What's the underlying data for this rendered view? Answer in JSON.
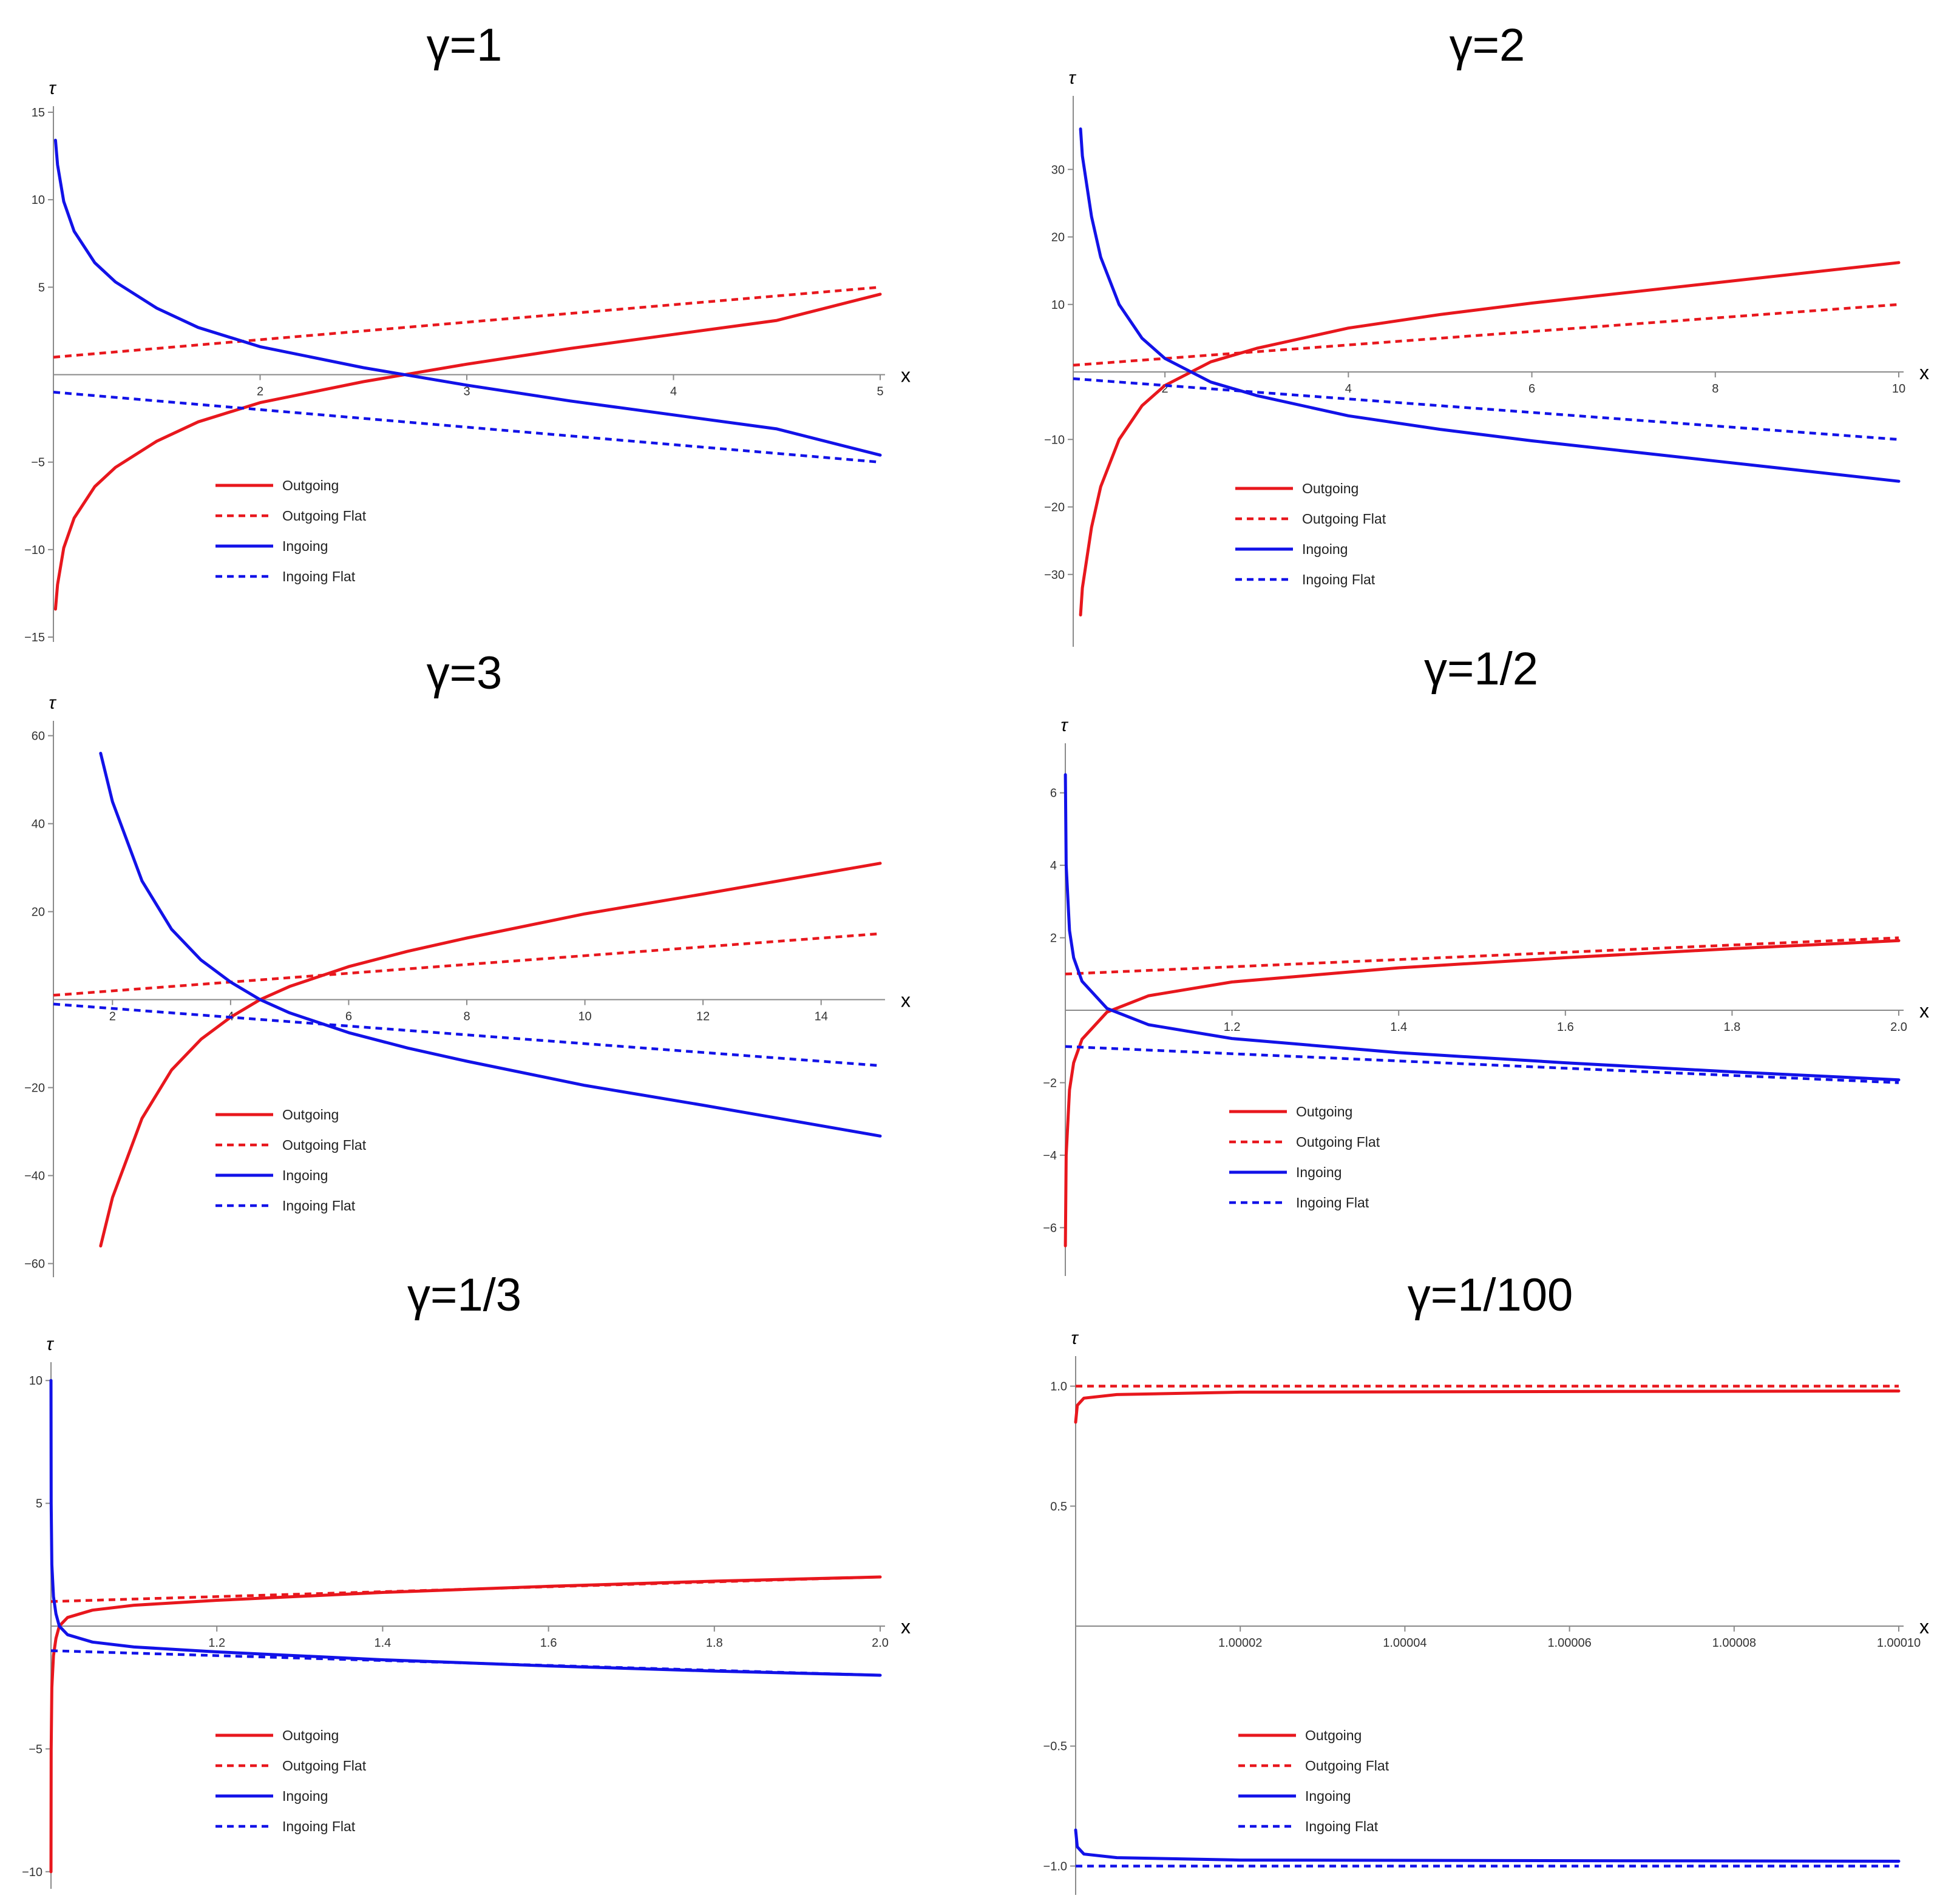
{
  "colors": {
    "outgoing": "#e8171d",
    "ingoing": "#1212e8",
    "axis": "#8a8a8a",
    "text": "#333333"
  },
  "legend": [
    "Outgoing",
    "Outgoing Flat",
    "Ingoing",
    "Ingoing Flat"
  ],
  "chart_data": [
    {
      "type": "line",
      "title": "γ=1",
      "gamma": 1,
      "xlabel": "x",
      "ylabel": "τ",
      "xlim": [
        1,
        5
      ],
      "ylim": [
        -15,
        15
      ],
      "xticks": [
        2,
        3,
        4,
        5
      ],
      "xtick_labels": [
        "2",
        "3",
        "4",
        "5"
      ],
      "yticks": [
        15,
        10,
        5,
        -5,
        -10,
        -15
      ],
      "ytick_labels": [
        "15",
        "10",
        "5",
        "−5",
        "−10",
        "−15"
      ],
      "series": [
        {
          "name": "Outgoing",
          "style": "solid",
          "color": "#e8171d",
          "x": [
            1.01,
            1.02,
            1.05,
            1.1,
            1.2,
            1.3,
            1.5,
            1.7,
            2,
            2.5,
            3,
            3.5,
            4,
            4.5,
            5
          ],
          "y": [
            -13.4,
            -12.0,
            -9.9,
            -8.2,
            -6.4,
            -5.3,
            -3.8,
            -2.7,
            -1.6,
            -0.4,
            0.6,
            1.5,
            2.3,
            3.1,
            4.6
          ]
        },
        {
          "name": "Outgoing Flat",
          "style": "dashed",
          "color": "#e8171d",
          "x": [
            1,
            5
          ],
          "y": [
            1,
            5
          ]
        },
        {
          "name": "Ingoing",
          "style": "solid",
          "color": "#1212e8",
          "x": [
            1.01,
            1.02,
            1.05,
            1.1,
            1.2,
            1.3,
            1.5,
            1.7,
            2,
            2.5,
            3,
            3.5,
            4,
            4.5,
            5
          ],
          "y": [
            13.4,
            12.0,
            9.9,
            8.2,
            6.4,
            5.3,
            3.8,
            2.7,
            1.6,
            0.4,
            -0.6,
            -1.5,
            -2.3,
            -3.1,
            -4.6
          ]
        },
        {
          "name": "Ingoing Flat",
          "style": "dashed",
          "color": "#1212e8",
          "x": [
            1,
            5
          ],
          "y": [
            -1,
            -5
          ]
        }
      ]
    },
    {
      "type": "line",
      "title": "γ=2",
      "gamma": 2,
      "xlabel": "x",
      "ylabel": "τ",
      "xlim": [
        1,
        10
      ],
      "ylim": [
        -40,
        40
      ],
      "xticks": [
        2,
        4,
        6,
        8,
        10
      ],
      "xtick_labels": [
        "2",
        "4",
        "6",
        "8",
        "10"
      ],
      "yticks": [
        30,
        20,
        10,
        -10,
        -20,
        -30
      ],
      "ytick_labels": [
        "30",
        "20",
        "10",
        "−10",
        "−20",
        "−30"
      ],
      "series": [
        {
          "name": "Outgoing",
          "style": "solid",
          "color": "#e8171d",
          "x": [
            1.08,
            1.1,
            1.2,
            1.3,
            1.5,
            1.75,
            2,
            2.5,
            3,
            4,
            5,
            6,
            8,
            10
          ],
          "y": [
            -36,
            -32,
            -23,
            -17,
            -10,
            -5,
            -2,
            1.5,
            3.5,
            6.5,
            8.5,
            10.2,
            13.2,
            16.2
          ]
        },
        {
          "name": "Outgoing Flat",
          "style": "dashed",
          "color": "#e8171d",
          "x": [
            1,
            10
          ],
          "y": [
            1,
            10
          ]
        },
        {
          "name": "Ingoing",
          "style": "solid",
          "color": "#1212e8",
          "x": [
            1.08,
            1.1,
            1.2,
            1.3,
            1.5,
            1.75,
            2,
            2.5,
            3,
            4,
            5,
            6,
            8,
            10
          ],
          "y": [
            36,
            32,
            23,
            17,
            10,
            5,
            2,
            -1.5,
            -3.5,
            -6.5,
            -8.5,
            -10.2,
            -13.2,
            -16.2
          ]
        },
        {
          "name": "Ingoing Flat",
          "style": "dashed",
          "color": "#1212e8",
          "x": [
            1,
            10
          ],
          "y": [
            -1,
            -10
          ]
        }
      ]
    },
    {
      "type": "line",
      "title": "γ=3",
      "gamma": 3,
      "xlabel": "x",
      "ylabel": "τ",
      "xlim": [
        1,
        15
      ],
      "ylim": [
        -62,
        62
      ],
      "xticks": [
        2,
        4,
        6,
        8,
        10,
        12,
        14
      ],
      "xtick_labels": [
        "2",
        "4",
        "6",
        "8",
        "10",
        "12",
        "14"
      ],
      "yticks": [
        60,
        40,
        20,
        -20,
        -40,
        -60
      ],
      "ytick_labels": [
        "60",
        "40",
        "20",
        "−20",
        "−40",
        "−60"
      ],
      "series": [
        {
          "name": "Outgoing",
          "style": "solid",
          "color": "#e8171d",
          "x": [
            1.8,
            2,
            2.5,
            3,
            3.5,
            4,
            4.5,
            5,
            6,
            7,
            8,
            10,
            12,
            15
          ],
          "y": [
            -56,
            -45,
            -27,
            -16,
            -9,
            -4,
            0,
            3,
            7.5,
            11,
            14,
            19.5,
            24,
            31
          ]
        },
        {
          "name": "Outgoing Flat",
          "style": "dashed",
          "color": "#e8171d",
          "x": [
            1,
            15
          ],
          "y": [
            1,
            15
          ]
        },
        {
          "name": "Ingoing",
          "style": "solid",
          "color": "#1212e8",
          "x": [
            1.8,
            2,
            2.5,
            3,
            3.5,
            4,
            4.5,
            5,
            6,
            7,
            8,
            10,
            12,
            15
          ],
          "y": [
            56,
            45,
            27,
            16,
            9,
            4,
            0,
            -3,
            -7.5,
            -11,
            -14,
            -19.5,
            -24,
            -31
          ]
        },
        {
          "name": "Ingoing Flat",
          "style": "dashed",
          "color": "#1212e8",
          "x": [
            1,
            15
          ],
          "y": [
            -1,
            -15
          ]
        }
      ]
    },
    {
      "type": "line",
      "title": "γ=1/2",
      "gamma": 0.5,
      "xlabel": "x",
      "ylabel": "τ",
      "xlim": [
        1,
        2
      ],
      "ylim": [
        -7.2,
        7.2
      ],
      "xticks": [
        1.2,
        1.4,
        1.6,
        1.8,
        2.0
      ],
      "xtick_labels": [
        "1.2",
        "1.4",
        "1.6",
        "1.8",
        "2.0"
      ],
      "yticks": [
        6,
        4,
        2,
        -2,
        -4,
        -6
      ],
      "ytick_labels": [
        "6",
        "4",
        "2",
        "−2",
        "−4",
        "−6"
      ],
      "series": [
        {
          "name": "Outgoing",
          "style": "solid",
          "color": "#e8171d",
          "x": [
            1.0001,
            1.001,
            1.005,
            1.01,
            1.02,
            1.05,
            1.1,
            1.2,
            1.4,
            1.6,
            1.8,
            2.0
          ],
          "y": [
            -6.5,
            -4.0,
            -2.2,
            -1.45,
            -0.8,
            -0.05,
            0.4,
            0.78,
            1.17,
            1.45,
            1.7,
            1.92
          ]
        },
        {
          "name": "Outgoing Flat",
          "style": "dashed",
          "color": "#e8171d",
          "x": [
            1,
            2
          ],
          "y": [
            1,
            2
          ]
        },
        {
          "name": "Ingoing",
          "style": "solid",
          "color": "#1212e8",
          "x": [
            1.0001,
            1.001,
            1.005,
            1.01,
            1.02,
            1.05,
            1.1,
            1.2,
            1.4,
            1.6,
            1.8,
            2.0
          ],
          "y": [
            6.5,
            4.0,
            2.2,
            1.45,
            0.8,
            0.05,
            -0.4,
            -0.78,
            -1.17,
            -1.45,
            -1.7,
            -1.92
          ]
        },
        {
          "name": "Ingoing Flat",
          "style": "dashed",
          "color": "#1212e8",
          "x": [
            1,
            2
          ],
          "y": [
            -1,
            -2
          ]
        }
      ]
    },
    {
      "type": "line",
      "title": "γ=1/3",
      "gamma": 0.3333,
      "xlabel": "x",
      "ylabel": "τ",
      "xlim": [
        1,
        2
      ],
      "ylim": [
        -10.5,
        10.5
      ],
      "xticks": [
        1.2,
        1.4,
        1.6,
        1.8,
        2.0
      ],
      "xtick_labels": [
        "1.2",
        "1.4",
        "1.6",
        "1.8",
        "2.0"
      ],
      "yticks": [
        10,
        5,
        -5,
        -10
      ],
      "ytick_labels": [
        "10",
        "5",
        "−5",
        "−10"
      ],
      "series": [
        {
          "name": "Outgoing",
          "style": "solid",
          "color": "#e8171d",
          "x": [
            1.0,
            1.0002,
            1.001,
            1.003,
            1.006,
            1.01,
            1.02,
            1.05,
            1.1,
            1.2,
            1.4,
            1.6,
            1.8,
            2.0
          ],
          "y": [
            -10,
            -5,
            -2.5,
            -1.2,
            -0.5,
            0,
            0.35,
            0.65,
            0.85,
            1.05,
            1.37,
            1.62,
            1.83,
            2.0
          ]
        },
        {
          "name": "Outgoing Flat",
          "style": "dashed",
          "color": "#e8171d",
          "x": [
            1,
            2
          ],
          "y": [
            1,
            2
          ]
        },
        {
          "name": "Ingoing",
          "style": "solid",
          "color": "#1212e8",
          "x": [
            1.0,
            1.0002,
            1.001,
            1.003,
            1.006,
            1.01,
            1.02,
            1.05,
            1.1,
            1.2,
            1.4,
            1.6,
            1.8,
            2.0
          ],
          "y": [
            10,
            5,
            2.5,
            1.2,
            0.5,
            0,
            -0.35,
            -0.65,
            -0.85,
            -1.05,
            -1.37,
            -1.62,
            -1.83,
            -2.0
          ]
        },
        {
          "name": "Ingoing Flat",
          "style": "dashed",
          "color": "#1212e8",
          "x": [
            1,
            2
          ],
          "y": [
            -1,
            -2
          ]
        }
      ]
    },
    {
      "type": "line",
      "title": "γ=1/100",
      "gamma": 0.01,
      "xlabel": "x",
      "ylabel": "τ",
      "xlim": [
        1,
        1.0001
      ],
      "ylim": [
        -1.1,
        1.1
      ],
      "xticks": [
        1.00002,
        1.00004,
        1.00006,
        1.00008,
        1.0001
      ],
      "xtick_labels": [
        "1.00002",
        "1.00004",
        "1.00006",
        "1.00008",
        "1.00010"
      ],
      "yticks": [
        1.0,
        0.5,
        -0.5,
        -1.0
      ],
      "ytick_labels": [
        "1.0",
        "0.5",
        "−0.5",
        "−1.0"
      ],
      "series": [
        {
          "name": "Outgoing",
          "style": "solid",
          "color": "#e8171d",
          "x": [
            1.0,
            1.0000002,
            1.000001,
            1.000005,
            1.00002,
            1.0001
          ],
          "y": [
            0.85,
            0.92,
            0.95,
            0.965,
            0.975,
            0.98
          ]
        },
        {
          "name": "Outgoing Flat",
          "style": "dashed",
          "color": "#e8171d",
          "x": [
            1,
            1.0001
          ],
          "y": [
            1,
            1.0001
          ]
        },
        {
          "name": "Ingoing",
          "style": "solid",
          "color": "#1212e8",
          "x": [
            1.0,
            1.0000002,
            1.000001,
            1.000005,
            1.00002,
            1.0001
          ],
          "y": [
            -0.85,
            -0.92,
            -0.95,
            -0.965,
            -0.975,
            -0.98
          ]
        },
        {
          "name": "Ingoing Flat",
          "style": "dashed",
          "color": "#1212e8",
          "x": [
            1,
            1.0001
          ],
          "y": [
            -1,
            -1.0001
          ]
        }
      ]
    }
  ]
}
